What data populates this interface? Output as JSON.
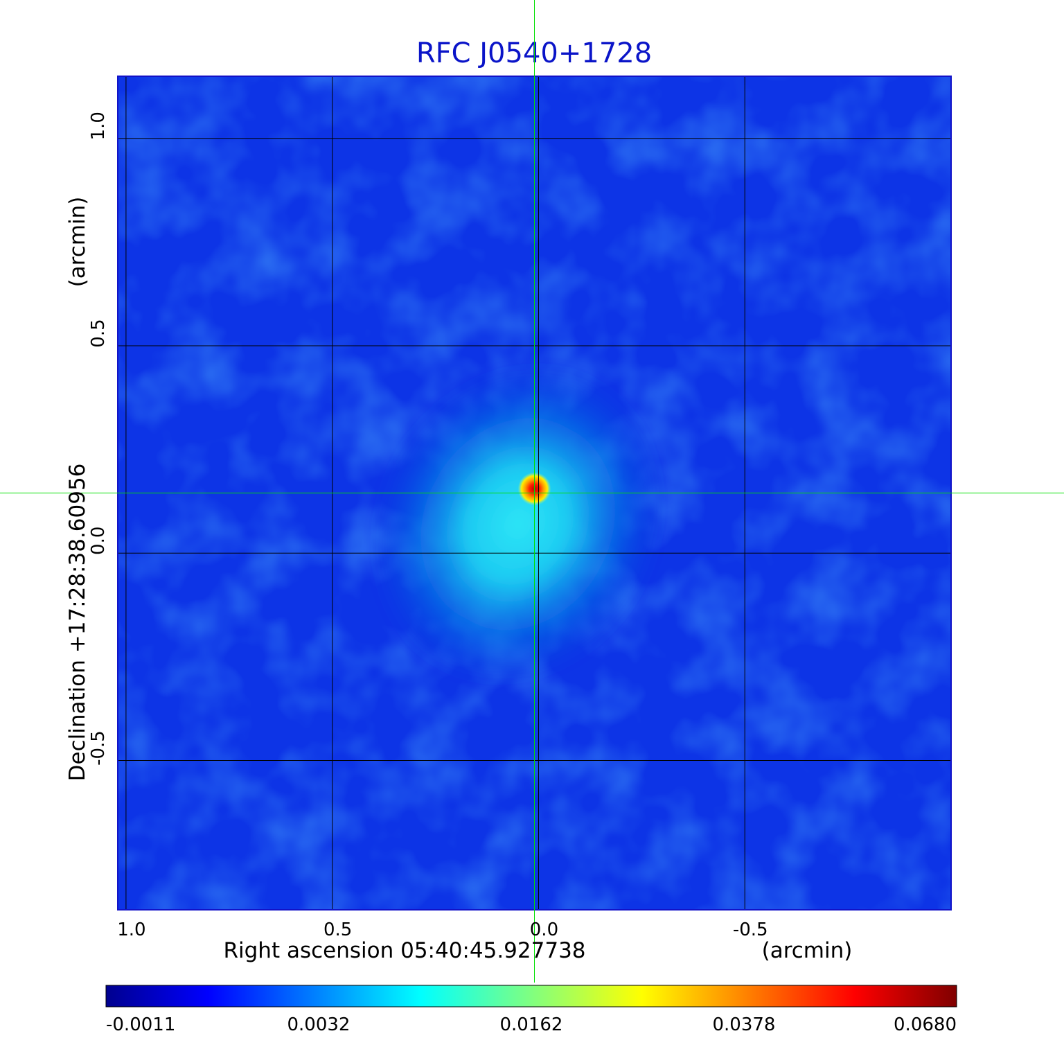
{
  "chart_data": {
    "type": "heatmap",
    "title": "RFC J0540+1728",
    "xlabel": "Right ascension  05:40:45.927738",
    "xunit": "(arcmin)",
    "ylabel": "Declination  +17:28:38.60956",
    "yunit": "(arcmin)",
    "xlim": [
      1.02,
      -1.0
    ],
    "ylim": [
      -0.86,
      1.15
    ],
    "x_ticks": [
      {
        "value": 1.0,
        "label": "1.0"
      },
      {
        "value": 0.5,
        "label": "0.5"
      },
      {
        "value": 0.0,
        "label": "0.0"
      },
      {
        "value": -0.5,
        "label": "-0.5"
      }
    ],
    "y_ticks": [
      {
        "value": 1.0,
        "label": "1.0"
      },
      {
        "value": 0.5,
        "label": "0.5"
      },
      {
        "value": 0.0,
        "label": "0.0"
      },
      {
        "value": -0.5,
        "label": "-0.5"
      }
    ],
    "grid": true,
    "crosshair": {
      "x": 0.01,
      "y": 0.145,
      "color": "#00e000"
    },
    "source": {
      "peak": {
        "x": 0.01,
        "y": 0.155,
        "value": 0.068
      },
      "halo": {
        "x": 0.05,
        "y": 0.07,
        "value": 0.007
      }
    },
    "colorbar": {
      "orientation": "horizontal",
      "colormap": "jet",
      "tick_labels": [
        "-0.0011",
        "0.0032",
        "0.0162",
        "0.0378",
        "0.0680"
      ]
    }
  }
}
